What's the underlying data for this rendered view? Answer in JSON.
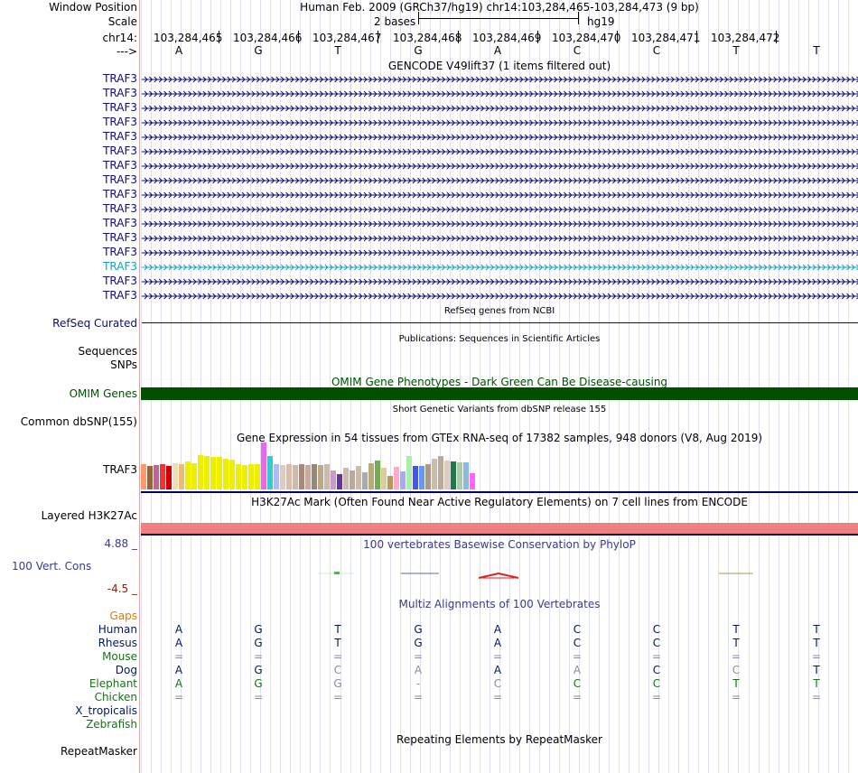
{
  "header": {
    "window_position_label": "Window Position",
    "scale_label": "Scale",
    "chrom_label": "chr14:",
    "arrow_label": "--->",
    "assembly_title": "Human Feb. 2009 (GRCh37/hg19)   chr14:103,284,465-103,284,473 (9 bp)",
    "scale_text": "2 bases",
    "scale_db": "hg19",
    "positions": [
      "103,284,465",
      "103,284,466",
      "103,284,467",
      "103,284,468",
      "103,284,469",
      "103,284,470",
      "103,284,471",
      "103,284,472"
    ],
    "ref_bases": [
      "A",
      "G",
      "T",
      "G",
      "A",
      "C",
      "C",
      "T",
      "T"
    ]
  },
  "gencode": {
    "title": "GENCODE V49lift37 (1 items filtered out)",
    "genes": [
      "TRAF3",
      "TRAF3",
      "TRAF3",
      "TRAF3",
      "TRAF3",
      "TRAF3",
      "TRAF3",
      "TRAF3",
      "TRAF3",
      "TRAF3",
      "TRAF3",
      "TRAF3",
      "TRAF3",
      "TRAF3",
      "TRAF3",
      "TRAF3"
    ],
    "gene_color": "#0c0c78",
    "highlight_color": "#12a0c8"
  },
  "refseq": {
    "title": "RefSeq genes from NCBI",
    "label": "RefSeq Curated"
  },
  "publications": {
    "title": "Publications: Sequences in Scientific Articles",
    "label_seq": "Sequences",
    "label_snp": "SNPs"
  },
  "omim": {
    "title": "OMIM Gene Phenotypes - Dark Green Can Be Disease-causing",
    "label": "OMIM Genes",
    "color": "#005000"
  },
  "dbsnp": {
    "title": "Short Genetic Variants from dbSNP release 155",
    "label": "Common dbSNP(155)"
  },
  "gtex": {
    "title": "Gene Expression in 54 tissues from GTEx RNA-seq of 17382 samples, 948 donors (V8, Aug 2019)",
    "label": "TRAF3",
    "bars": [
      {
        "v": 27,
        "c": "#ff9966"
      },
      {
        "v": 25,
        "c": "#996633"
      },
      {
        "v": 26,
        "c": "#bb6699"
      },
      {
        "v": 27,
        "c": "#ee3333"
      },
      {
        "v": 25,
        "c": "#cc0000"
      },
      {
        "v": 28,
        "c": "#eeddbb"
      },
      {
        "v": 27,
        "c": "#eebb77"
      },
      {
        "v": 30,
        "c": "#eeee00"
      },
      {
        "v": 28,
        "c": "#eeee00"
      },
      {
        "v": 37,
        "c": "#eeee00"
      },
      {
        "v": 36,
        "c": "#eeee00"
      },
      {
        "v": 35,
        "c": "#eeee00"
      },
      {
        "v": 35,
        "c": "#eeee00"
      },
      {
        "v": 33,
        "c": "#eeee00"
      },
      {
        "v": 32,
        "c": "#eeee00"
      },
      {
        "v": 27,
        "c": "#eeee00"
      },
      {
        "v": 26,
        "c": "#eeee00"
      },
      {
        "v": 27,
        "c": "#eeee00"
      },
      {
        "v": 27,
        "c": "#eeee00"
      },
      {
        "v": 50,
        "c": "#ee66ee"
      },
      {
        "v": 36,
        "c": "#33cccc"
      },
      {
        "v": 27,
        "c": "#aabbff"
      },
      {
        "v": 26,
        "c": "#ddccbb"
      },
      {
        "v": 27,
        "c": "#ddbbaa"
      },
      {
        "v": 26,
        "c": "#ccbbaa"
      },
      {
        "v": 27,
        "c": "#aa8877"
      },
      {
        "v": 26,
        "c": "#ccaa99"
      },
      {
        "v": 27,
        "c": "#998877"
      },
      {
        "v": 26,
        "c": "#bbaa88"
      },
      {
        "v": 27,
        "c": "#ccbbaa"
      },
      {
        "v": 20,
        "c": "#cc99cc"
      },
      {
        "v": 16,
        "c": "#663399"
      },
      {
        "v": 23,
        "c": "#ccbbaa"
      },
      {
        "v": 20,
        "c": "#bbaa99"
      },
      {
        "v": 25,
        "c": "#ccbbaa"
      },
      {
        "v": 18,
        "c": "#aaaaaa"
      },
      {
        "v": 28,
        "c": "#bbaa77"
      },
      {
        "v": 31,
        "c": "#77aa55"
      },
      {
        "v": 23,
        "c": "#ddcc99"
      },
      {
        "v": 14,
        "c": "#bb9955"
      },
      {
        "v": 24,
        "c": "#ffaacc"
      },
      {
        "v": 19,
        "c": "#aaaaee"
      },
      {
        "v": 36,
        "c": "#aaeeaa"
      },
      {
        "v": 25,
        "c": "#4455ee"
      },
      {
        "v": 25,
        "c": "#6699ee"
      },
      {
        "v": 27,
        "c": "#aa9988"
      },
      {
        "v": 33,
        "c": "#ccbbaa"
      },
      {
        "v": 36,
        "c": "#bbaa99"
      },
      {
        "v": 31,
        "c": "#ddccbb"
      },
      {
        "v": 30,
        "c": "#227744"
      },
      {
        "v": 29,
        "c": "#aaccaa"
      },
      {
        "v": 29,
        "c": "#88bbdd"
      },
      {
        "v": 17,
        "c": "#ff66ff"
      }
    ]
  },
  "h3k27ac": {
    "title": "H3K27Ac Mark (Often Found Near Active Regulatory Elements) on 7 cell lines from ENCODE",
    "label": "Layered H3K27Ac",
    "color": "#f08080"
  },
  "phylop": {
    "title": "100 vertebrates Basewise Conservation by PhyloP",
    "label": "100 Vert. Cons",
    "max": "4.88 _",
    "min": "-4.5 _"
  },
  "multiz": {
    "title": "Multiz Alignments of 100 Vertebrates",
    "gaps_label": "Gaps",
    "species": [
      {
        "name": "Human",
        "color": "#001a5c",
        "bases": [
          "A",
          "G",
          "T",
          "G",
          "A",
          "C",
          "C",
          "T",
          "T"
        ]
      },
      {
        "name": "Rhesus",
        "color": "#001a5c",
        "bases": [
          "A",
          "G",
          "T",
          "G",
          "A",
          "C",
          "C",
          "T",
          "T"
        ]
      },
      {
        "name": "Mouse",
        "color": "#1a6f1a",
        "bases": [
          "=",
          "=",
          "=",
          "=",
          "=",
          "=",
          "=",
          "=",
          "="
        ]
      },
      {
        "name": "Dog",
        "color": "#001a5c",
        "bases": [
          "A",
          "G",
          "C",
          "A",
          "A",
          "A",
          "C",
          "C",
          "T"
        ]
      },
      {
        "name": "Elephant",
        "color": "#1a6f1a",
        "bases": [
          "A",
          "G",
          "G",
          "-",
          "C",
          "C",
          "C",
          "T",
          "T"
        ]
      },
      {
        "name": "Chicken",
        "color": "#1a6f1a",
        "bases": [
          "=",
          "=",
          "=",
          "=",
          "=",
          "=",
          "=",
          "=",
          "="
        ]
      },
      {
        "name": "X_tropicalis",
        "color": "#001a5c",
        "bases": [
          "",
          "",
          "",
          "",
          "",
          "",
          "",
          "",
          ""
        ]
      },
      {
        "name": "Zebrafish",
        "color": "#1a6f1a",
        "bases": [
          "",
          "",
          "",
          "",
          "",
          "",
          "",
          "",
          ""
        ]
      }
    ],
    "faded": [
      [],
      [],
      [],
      [
        2,
        3,
        5,
        7
      ],
      [
        2,
        4
      ],
      [],
      [],
      []
    ]
  },
  "repeatmasker": {
    "title": "Repeating Elements by RepeatMasker",
    "label": "RepeatMasker"
  },
  "colors": {
    "nav": "#0c0c78",
    "omim": "#005000",
    "phylop": "#3a3a8a",
    "gaps": "#e07a00",
    "min": "#8b2000"
  }
}
